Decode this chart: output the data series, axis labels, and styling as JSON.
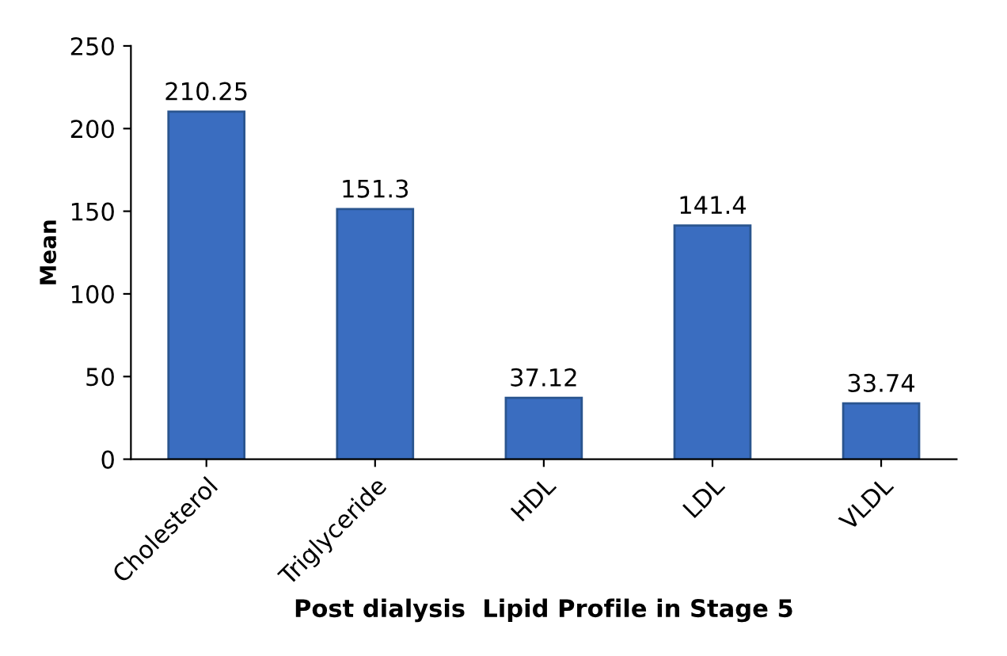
{
  "chart_data": {
    "type": "bar",
    "xlabel": "Post dialysis  Lipid Profile in Stage 5",
    "ylabel": "Mean",
    "categories": [
      "Cholesterol",
      "Triglyceride",
      "HDL",
      "LDL",
      "VLDL"
    ],
    "values": [
      210.25,
      151.3,
      37.12,
      141.4,
      33.74
    ],
    "color": "#3a6dc0",
    "ylim": [
      0,
      250
    ],
    "yticks": [
      0,
      50,
      100,
      150,
      200,
      250
    ],
    "data_labels": true,
    "grid": false,
    "legend": false
  }
}
